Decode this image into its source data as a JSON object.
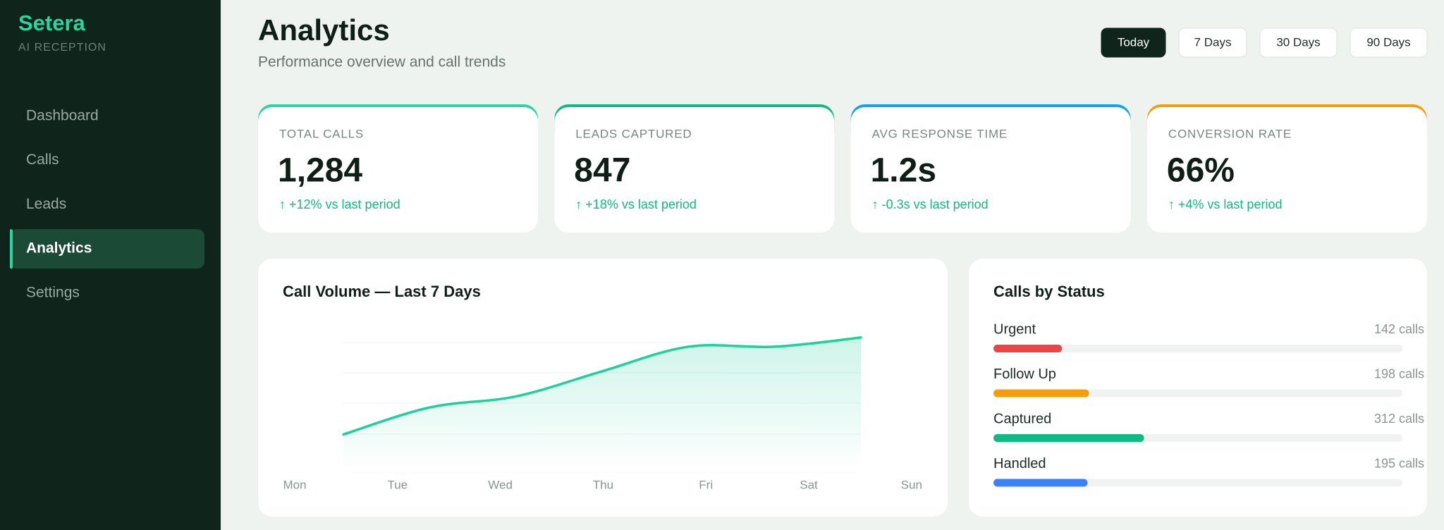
{
  "sidebar": {
    "brand": "Setera",
    "tagline": "AI RECEPTION",
    "nav": [
      "Dashboard",
      "Calls",
      "Leads",
      "Analytics",
      "Settings"
    ],
    "active": 3
  },
  "header": {
    "title": "Analytics",
    "subtitle": "Performance overview and call trends"
  },
  "ranges": {
    "options": [
      "Today",
      "7 Days",
      "30 Days",
      "90 Days"
    ],
    "active": 0
  },
  "stats": [
    {
      "label": "TOTAL CALLS",
      "value": "1,284",
      "delta": "↑ +12% vs last period",
      "color": "#2dd4a0"
    },
    {
      "label": "LEADS CAPTURED",
      "value": "847",
      "delta": "↑ +18% vs last period",
      "color": "#10b981"
    },
    {
      "label": "AVG RESPONSE TIME",
      "value": "1.2s",
      "delta": "↑ -0.3s vs last period",
      "color": "#0ea5e9"
    },
    {
      "label": "CONVERSION RATE",
      "value": "66%",
      "delta": "↑ +4% vs last period",
      "color": "#f59e0b"
    }
  ],
  "chart_data": {
    "type": "line",
    "title": "Call Volume — Last 7 Days",
    "categories": [
      "Mon",
      "Tue",
      "Wed",
      "Thu",
      "Fri",
      "Sat",
      "Sun"
    ],
    "values": [
      50,
      94,
      112,
      153,
      193,
      193,
      208
    ],
    "color": "#1fcf9c",
    "ylim": [
      0,
      240
    ]
  },
  "status": {
    "title": "Calls by Status",
    "items": [
      {
        "name": "Urgent",
        "value": 142,
        "value_label": "142 calls",
        "color": "#ef4444"
      },
      {
        "name": "Follow Up",
        "value": 198,
        "value_label": "198 calls",
        "color": "#f59e0b"
      },
      {
        "name": "Captured",
        "value": 312,
        "value_label": "312 calls",
        "color": "#10b981"
      },
      {
        "name": "Handled",
        "value": 195,
        "value_label": "195 calls",
        "color": "#3b82f6"
      }
    ]
  }
}
